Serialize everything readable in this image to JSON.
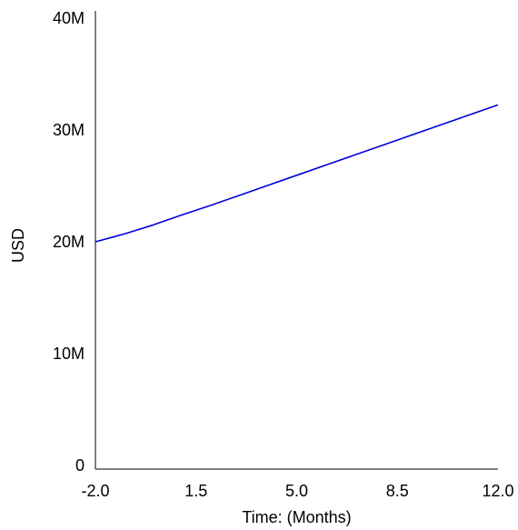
{
  "chart_data": {
    "type": "line",
    "xlabel": "Time: (Months)",
    "ylabel": "USD",
    "xlim": [
      -2.0,
      12.0
    ],
    "ylim": [
      0,
      40000000
    ],
    "x_ticks": [
      {
        "value": -2.0,
        "label": "-2.0"
      },
      {
        "value": 1.5,
        "label": "1.5"
      },
      {
        "value": 5.0,
        "label": "5.0"
      },
      {
        "value": 8.5,
        "label": "8.5"
      },
      {
        "value": 12.0,
        "label": "12.0"
      }
    ],
    "y_ticks": [
      {
        "value": 0,
        "label": "0"
      },
      {
        "value": 10000000,
        "label": "10M"
      },
      {
        "value": 20000000,
        "label": "20M"
      },
      {
        "value": 30000000,
        "label": "30M"
      },
      {
        "value": 40000000,
        "label": "40M"
      }
    ],
    "grid": false,
    "series": [
      {
        "color": "#0000dd",
        "x": [
          -2.0,
          -1.0,
          0.0,
          1.0,
          2.0,
          3.0,
          4.0,
          5.0,
          6.0,
          7.0,
          8.0,
          9.0,
          10.0,
          11.0,
          12.0
        ],
        "y": [
          20000000,
          20700000,
          21500000,
          22400000,
          23250000,
          24150000,
          25050000,
          25950000,
          26850000,
          27750000,
          28650000,
          29550000,
          30450000,
          31350000,
          32250000
        ]
      }
    ]
  }
}
